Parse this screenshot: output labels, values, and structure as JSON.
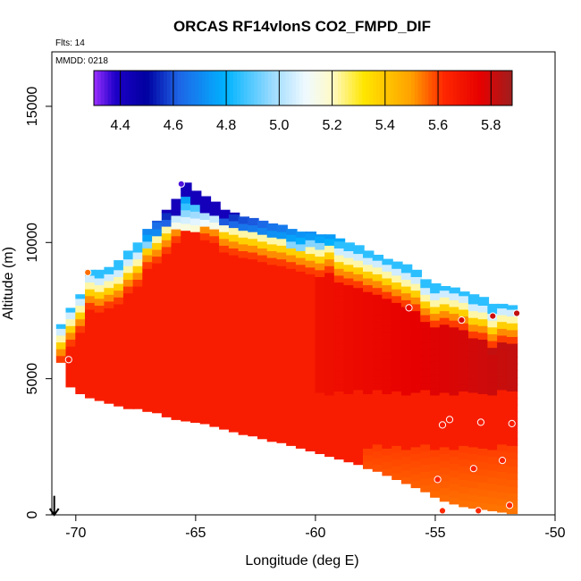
{
  "chart_data": {
    "type": "heatmap",
    "title": "ORCAS RF14vlonS CO2_FMPD_DIF",
    "flights_label": "Flts: 14",
    "date_label": "MMDD: 0218",
    "xlabel": "Longitude (deg E)",
    "ylabel": "Altitude (m)",
    "xlim": [
      -71,
      -50
    ],
    "ylim": [
      0,
      17000
    ],
    "x_ticks": [
      -70,
      -65,
      -60,
      -55,
      -50
    ],
    "y_ticks": [
      0,
      5000,
      10000,
      15000
    ],
    "colorbar": {
      "min": 4.3,
      "max": 5.88,
      "ticks": [
        4.4,
        4.6,
        4.8,
        5.0,
        5.2,
        5.4,
        5.6,
        5.8
      ],
      "tick_labels": [
        "4.4",
        "4.6",
        "4.8",
        "5.0",
        "5.2",
        "5.4",
        "5.6",
        "5.8"
      ],
      "stops": [
        {
          "v": 4.3,
          "c": "#9b30ff"
        },
        {
          "v": 4.38,
          "c": "#1e00c8"
        },
        {
          "v": 4.5,
          "c": "#0000a0"
        },
        {
          "v": 4.62,
          "c": "#1e64e6"
        },
        {
          "v": 4.8,
          "c": "#00b4ff"
        },
        {
          "v": 4.98,
          "c": "#a0dcff"
        },
        {
          "v": 5.1,
          "c": "#f0faff"
        },
        {
          "v": 5.2,
          "c": "#fffac8"
        },
        {
          "v": 5.32,
          "c": "#ffe600"
        },
        {
          "v": 5.5,
          "c": "#ffa000"
        },
        {
          "v": 5.62,
          "c": "#ff2800"
        },
        {
          "v": 5.76,
          "c": "#e60000"
        },
        {
          "v": 5.88,
          "c": "#a01e1e"
        }
      ]
    },
    "field": {
      "description_columns": "each column: longitude, bottom altitude, top altitude",
      "columns": [
        [
          -70.6,
          5600,
          7000
        ],
        [
          -70.2,
          4700,
          7600
        ],
        [
          -69.8,
          4450,
          8100
        ],
        [
          -69.4,
          4300,
          9000
        ],
        [
          -69.0,
          4200,
          9000
        ],
        [
          -68.6,
          4100,
          9100
        ],
        [
          -68.2,
          4000,
          9350
        ],
        [
          -67.8,
          3900,
          9700
        ],
        [
          -67.4,
          3900,
          10000
        ],
        [
          -67.0,
          3800,
          10500
        ],
        [
          -66.6,
          3750,
          10800
        ],
        [
          -66.2,
          3600,
          11200
        ],
        [
          -65.8,
          3500,
          11600
        ],
        [
          -65.4,
          3450,
          12200
        ],
        [
          -65.0,
          3400,
          11900
        ],
        [
          -64.6,
          3350,
          11700
        ],
        [
          -64.2,
          3250,
          11500
        ],
        [
          -63.8,
          3150,
          11200
        ],
        [
          -63.4,
          3050,
          11100
        ],
        [
          -63.0,
          2950,
          10950
        ],
        [
          -62.6,
          2900,
          10900
        ],
        [
          -62.2,
          2800,
          10800
        ],
        [
          -61.8,
          2700,
          10700
        ],
        [
          -61.4,
          2650,
          10650
        ],
        [
          -61.0,
          2550,
          10500
        ],
        [
          -60.6,
          2450,
          10400
        ],
        [
          -60.2,
          2350,
          10400
        ],
        [
          -59.8,
          2250,
          10300
        ],
        [
          -59.4,
          2150,
          10300
        ],
        [
          -59.0,
          2050,
          10150
        ],
        [
          -58.6,
          1950,
          10000
        ],
        [
          -58.2,
          1850,
          9900
        ],
        [
          -57.8,
          1700,
          9700
        ],
        [
          -57.4,
          1600,
          9550
        ],
        [
          -57.0,
          1450,
          9400
        ],
        [
          -56.6,
          1300,
          9300
        ],
        [
          -56.2,
          1150,
          9200
        ],
        [
          -55.8,
          1000,
          9000
        ],
        [
          -55.4,
          850,
          8650
        ],
        [
          -55.0,
          650,
          8500
        ],
        [
          -54.6,
          500,
          8400
        ],
        [
          -54.2,
          400,
          8350
        ],
        [
          -53.8,
          300,
          8200
        ],
        [
          -53.4,
          250,
          8100
        ],
        [
          -53.0,
          200,
          8000
        ],
        [
          -52.6,
          150,
          7750
        ],
        [
          -52.2,
          100,
          7750
        ],
        [
          -51.8,
          50,
          7700
        ]
      ],
      "colorfield_rules": [
        {
          "from_top_m": 0,
          "to_top_m": 300,
          "value_high_alt": 4.4,
          "value_mid_alt": 5.2
        },
        {
          "band": "base",
          "value": 5.66
        }
      ]
    },
    "sample_points": [
      {
        "lon": -70.3,
        "alt": 5700,
        "value": 5.68
      },
      {
        "lon": -69.5,
        "alt": 8900,
        "value": 5.55
      },
      {
        "lon": -65.6,
        "alt": 12150,
        "value": 4.35
      },
      {
        "lon": -56.1,
        "alt": 7600,
        "value": 5.74
      },
      {
        "lon": -53.9,
        "alt": 7150,
        "value": 5.78
      },
      {
        "lon": -52.6,
        "alt": 7300,
        "value": 5.8
      },
      {
        "lon": -51.6,
        "alt": 7400,
        "value": 5.82
      },
      {
        "lon": -54.4,
        "alt": 3500,
        "value": 5.66
      },
      {
        "lon": -54.7,
        "alt": 3300,
        "value": 5.66
      },
      {
        "lon": -53.1,
        "alt": 3400,
        "value": 5.66
      },
      {
        "lon": -51.8,
        "alt": 3350,
        "value": 5.66
      },
      {
        "lon": -53.4,
        "alt": 1700,
        "value": 5.64
      },
      {
        "lon": -52.2,
        "alt": 2000,
        "value": 5.64
      },
      {
        "lon": -54.9,
        "alt": 1300,
        "value": 5.64
      },
      {
        "lon": -54.7,
        "alt": 150,
        "value": 5.62
      },
      {
        "lon": -53.2,
        "alt": 150,
        "value": 5.62
      },
      {
        "lon": -51.9,
        "alt": 350,
        "value": 5.62
      }
    ],
    "arrow_marker": {
      "lon": -70.9,
      "alt_from": 700,
      "alt_to": 0
    }
  }
}
